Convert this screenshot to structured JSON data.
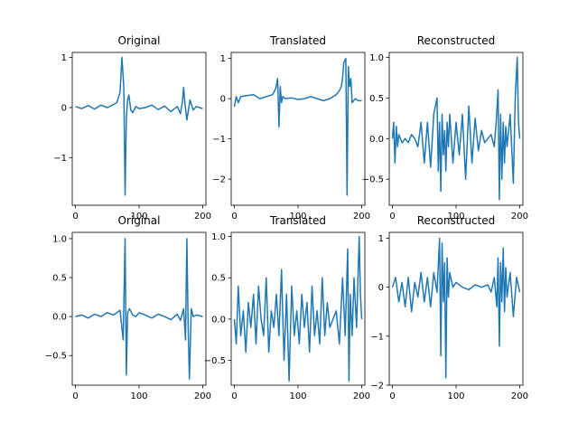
{
  "line_color": "#1f77b4",
  "chart_data": [
    {
      "type": "line",
      "title": "Original",
      "xlim": [
        -5,
        205
      ],
      "ylim": [
        -1.95,
        1.1
      ],
      "xticks": [
        0,
        100,
        200
      ],
      "xtick_labels": [
        "0",
        "100",
        "200"
      ],
      "yticks": [
        -1,
        0,
        1
      ],
      "ytick_labels": [
        "−1",
        "0",
        "1"
      ],
      "x": [
        0,
        10,
        20,
        30,
        40,
        50,
        60,
        65,
        70,
        73,
        76,
        78,
        80,
        82,
        84,
        87,
        90,
        95,
        100,
        110,
        120,
        130,
        140,
        150,
        160,
        165,
        168,
        170,
        172,
        175,
        180,
        185,
        190,
        200
      ],
      "values": [
        0.02,
        -0.02,
        0.04,
        -0.03,
        0.05,
        0.0,
        0.06,
        0.1,
        0.3,
        1.0,
        0.4,
        -1.75,
        -0.2,
        0.15,
        0.25,
        -0.05,
        -0.1,
        0.02,
        -0.02,
        0.0,
        0.05,
        -0.04,
        0.03,
        -0.08,
        0.02,
        -0.12,
        0.1,
        0.4,
        0.1,
        -0.25,
        0.15,
        -0.05,
        0.02,
        -0.02
      ]
    },
    {
      "type": "line",
      "title": "Translated",
      "xlim": [
        -5,
        205
      ],
      "ylim": [
        -2.65,
        1.15
      ],
      "xticks": [
        0,
        100,
        200
      ],
      "xtick_labels": [
        "0",
        "100",
        "200"
      ],
      "yticks": [
        -2,
        -1,
        0,
        1
      ],
      "ytick_labels": [
        "−2",
        "−1",
        "0",
        "1"
      ],
      "x": [
        0,
        3,
        6,
        10,
        20,
        30,
        40,
        50,
        60,
        65,
        68,
        70,
        72,
        74,
        76,
        80,
        90,
        100,
        110,
        120,
        130,
        140,
        150,
        160,
        165,
        168,
        170,
        172,
        175,
        177,
        179,
        181,
        183,
        185,
        190,
        195,
        200
      ],
      "values": [
        -0.2,
        0.05,
        -0.1,
        0.05,
        0.08,
        0.1,
        0.0,
        0.05,
        0.1,
        0.25,
        0.5,
        -0.7,
        0.3,
        -0.1,
        0.05,
        0.0,
        0.02,
        -0.02,
        0.0,
        0.05,
        0.0,
        -0.05,
        0.0,
        0.1,
        0.2,
        0.3,
        0.5,
        0.9,
        1.0,
        -2.4,
        0.8,
        0.3,
        0.5,
        -0.1,
        0.0,
        -0.05,
        -0.05
      ]
    },
    {
      "type": "line",
      "title": "Reconstructed",
      "xlim": [
        -5,
        205
      ],
      "ylim": [
        -0.82,
        1.06
      ],
      "xticks": [
        0,
        100,
        200
      ],
      "xtick_labels": [
        "0",
        "100",
        "200"
      ],
      "yticks": [
        -0.5,
        0,
        0.5,
        1
      ],
      "ytick_labels": [
        "−0.5",
        "0.0",
        "0.5",
        "1.0"
      ],
      "x": [
        0,
        2,
        4,
        6,
        8,
        10,
        15,
        20,
        25,
        30,
        35,
        40,
        45,
        50,
        55,
        60,
        65,
        70,
        72,
        74,
        76,
        78,
        80,
        82,
        84,
        86,
        88,
        90,
        95,
        100,
        105,
        110,
        115,
        120,
        125,
        130,
        135,
        140,
        145,
        150,
        155,
        160,
        163,
        166,
        168,
        170,
        172,
        174,
        176,
        178,
        180,
        185,
        190,
        193,
        196,
        198,
        200
      ],
      "values": [
        0.0,
        0.2,
        -0.3,
        0.15,
        -0.1,
        0.05,
        -0.05,
        0.0,
        -0.05,
        0.05,
        0.0,
        -0.1,
        0.2,
        -0.3,
        0.2,
        -0.35,
        0.3,
        0.5,
        -0.4,
        0.2,
        -0.65,
        0.3,
        -0.2,
        0.1,
        -0.4,
        0.2,
        -0.1,
        0.3,
        -0.3,
        0.2,
        -0.2,
        0.3,
        -0.5,
        0.4,
        -0.3,
        0.25,
        -0.15,
        0.1,
        -0.05,
        0.0,
        0.05,
        -0.1,
        0.2,
        0.6,
        -0.75,
        0.3,
        -0.5,
        0.2,
        -0.3,
        0.15,
        -0.1,
        0.3,
        -0.55,
        0.5,
        1.0,
        0.2,
        0.0
      ]
    },
    {
      "type": "line",
      "title": "Original",
      "xlim": [
        -5,
        205
      ],
      "ylim": [
        -0.88,
        1.08
      ],
      "xticks": [
        0,
        100,
        200
      ],
      "xtick_labels": [
        "0",
        "100",
        "200"
      ],
      "yticks": [
        -0.5,
        0,
        0.5,
        1
      ],
      "ytick_labels": [
        "−0.5",
        "0.0",
        "0.5",
        "1.0"
      ],
      "x": [
        0,
        10,
        20,
        30,
        40,
        50,
        60,
        70,
        75,
        78,
        80,
        82,
        85,
        90,
        95,
        100,
        110,
        120,
        130,
        140,
        150,
        160,
        165,
        170,
        173,
        175,
        177,
        179,
        182,
        185,
        190,
        200
      ],
      "values": [
        0.0,
        0.02,
        -0.02,
        0.03,
        0.0,
        0.05,
        0.02,
        0.08,
        -0.3,
        1.0,
        -0.75,
        0.05,
        0.1,
        0.02,
        0.0,
        0.05,
        0.02,
        -0.02,
        0.03,
        0.0,
        -0.04,
        0.03,
        -0.05,
        0.1,
        -0.3,
        1.0,
        -0.1,
        -0.8,
        0.1,
        0.0,
        0.02,
        0.0
      ]
    },
    {
      "type": "line",
      "title": "Translated",
      "xlim": [
        -5,
        205
      ],
      "ylim": [
        -0.8,
        1.05
      ],
      "xticks": [
        0,
        100,
        200
      ],
      "xtick_labels": [
        "0",
        "100",
        "200"
      ],
      "yticks": [
        -0.5,
        0,
        0.5,
        1
      ],
      "ytick_labels": [
        "−0.5",
        "0.0",
        "0.5",
        "1.0"
      ],
      "x": [
        0,
        3,
        6,
        10,
        14,
        18,
        22,
        26,
        30,
        34,
        38,
        42,
        46,
        50,
        54,
        58,
        62,
        66,
        70,
        74,
        78,
        82,
        86,
        90,
        94,
        98,
        102,
        106,
        110,
        114,
        118,
        122,
        126,
        130,
        134,
        138,
        142,
        146,
        150,
        155,
        160,
        165,
        170,
        174,
        178,
        180,
        182,
        185,
        188,
        192,
        196,
        198,
        200
      ],
      "values": [
        0.0,
        -0.3,
        0.4,
        -0.2,
        0.1,
        -0.4,
        0.2,
        -0.1,
        0.3,
        -0.3,
        0.4,
        0.0,
        -0.2,
        0.5,
        -0.4,
        0.1,
        -0.1,
        0.3,
        -0.2,
        0.6,
        -0.5,
        0.3,
        -0.75,
        0.4,
        -0.2,
        0.1,
        -0.3,
        0.3,
        -0.1,
        0.2,
        -0.4,
        0.4,
        -0.2,
        0.1,
        -0.3,
        0.5,
        -0.2,
        0.2,
        -0.1,
        0.0,
        0.1,
        -0.3,
        0.5,
        -0.2,
        0.85,
        -0.75,
        0.3,
        -0.2,
        0.5,
        -0.1,
        1.0,
        0.3,
        0.0
      ]
    },
    {
      "type": "line",
      "title": "Reconstructed",
      "xlim": [
        -5,
        205
      ],
      "ylim": [
        -2.0,
        1.12
      ],
      "xticks": [
        0,
        100,
        200
      ],
      "xtick_labels": [
        "0",
        "100",
        "200"
      ],
      "yticks": [
        -2,
        -1,
        0,
        1
      ],
      "ytick_labels": [
        "−2",
        "−1",
        "0",
        "1"
      ],
      "x": [
        0,
        5,
        10,
        15,
        20,
        25,
        30,
        35,
        40,
        45,
        50,
        55,
        60,
        65,
        70,
        74,
        76,
        78,
        80,
        82,
        84,
        86,
        88,
        90,
        95,
        100,
        110,
        120,
        130,
        140,
        150,
        155,
        160,
        164,
        166,
        168,
        170,
        172,
        174,
        176,
        178,
        180,
        185,
        190,
        195,
        200
      ],
      "values": [
        0.0,
        0.2,
        -0.3,
        0.1,
        -0.4,
        0.2,
        -0.5,
        0.1,
        -0.2,
        0.3,
        -0.3,
        0.2,
        -0.4,
        0.3,
        -0.1,
        1.0,
        -1.4,
        0.9,
        -0.3,
        0.5,
        -1.85,
        0.6,
        -0.2,
        0.3,
        0.0,
        0.1,
        0.0,
        -0.05,
        0.05,
        0.0,
        0.05,
        -0.1,
        0.2,
        -0.4,
        0.6,
        -1.2,
        0.5,
        -0.3,
        0.8,
        -0.5,
        0.4,
        -0.2,
        0.3,
        -0.6,
        0.2,
        -0.1
      ]
    }
  ]
}
